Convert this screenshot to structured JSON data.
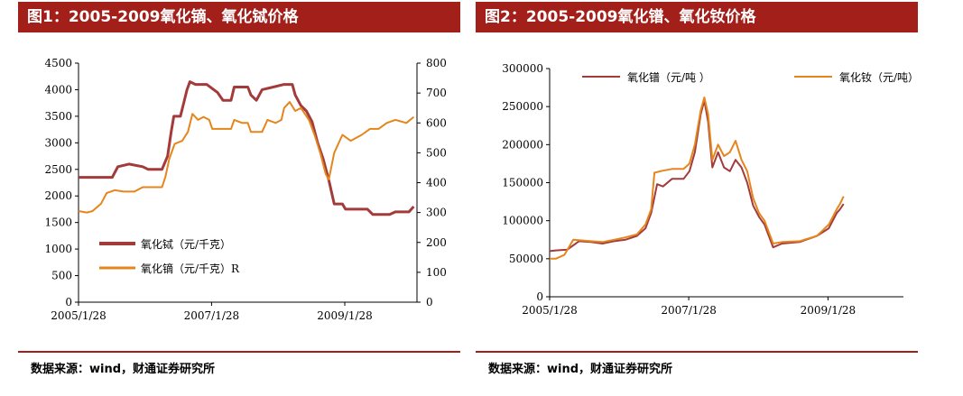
{
  "colors": {
    "title_bg": "#a31f1a",
    "series_dark": "#a33b3b",
    "series_orange": "#e5851d"
  },
  "panels": [
    {
      "title": "图1：2005-2009氧化镝、氧化铽价格",
      "source": "数据来源：wind，财通证券研究所"
    },
    {
      "title": "图2：2005-2009氧化镨、氧化钕价格",
      "source": "数据来源：wind，财通证券研究所"
    }
  ],
  "chart_data": [
    {
      "type": "line",
      "title": "",
      "x_ticks": [
        "2005/1/28",
        "2007/1/28",
        "2009/1/28"
      ],
      "x_range": [
        "2005-01-28",
        "2010-02-28"
      ],
      "y_left": {
        "min": 0,
        "max": 4500,
        "ticks": [
          0,
          500,
          1000,
          1500,
          2000,
          2500,
          3000,
          3500,
          4000,
          4500
        ]
      },
      "y_right": {
        "min": 0,
        "max": 800,
        "ticks": [
          0,
          100,
          200,
          300,
          400,
          500,
          600,
          700,
          800
        ]
      },
      "grid": false,
      "legend": "bottom-center",
      "series": [
        {
          "name": "氧化铽（元/千克）",
          "axis": "left",
          "color": "#a33b3b",
          "width": 3,
          "points": [
            [
              "2005-01-28",
              2350
            ],
            [
              "2005-08-01",
              2350
            ],
            [
              "2005-09-01",
              2550
            ],
            [
              "2005-11-01",
              2600
            ],
            [
              "2006-01-15",
              2550
            ],
            [
              "2006-02-15",
              2500
            ],
            [
              "2006-05-01",
              2500
            ],
            [
              "2006-06-01",
              2750
            ],
            [
              "2006-06-20",
              3200
            ],
            [
              "2006-07-05",
              3500
            ],
            [
              "2006-08-10",
              3500
            ],
            [
              "2006-09-01",
              3800
            ],
            [
              "2006-09-15",
              4000
            ],
            [
              "2006-10-01",
              4150
            ],
            [
              "2006-11-01",
              4100
            ],
            [
              "2007-01-01",
              4100
            ],
            [
              "2007-03-01",
              3950
            ],
            [
              "2007-04-01",
              3800
            ],
            [
              "2007-05-15",
              3800
            ],
            [
              "2007-06-01",
              4050
            ],
            [
              "2007-08-15",
              4050
            ],
            [
              "2007-09-01",
              3900
            ],
            [
              "2007-10-01",
              3800
            ],
            [
              "2007-11-01",
              4000
            ],
            [
              "2008-01-01",
              4050
            ],
            [
              "2008-03-01",
              4100
            ],
            [
              "2008-04-15",
              4100
            ],
            [
              "2008-05-01",
              3900
            ],
            [
              "2008-06-01",
              3700
            ],
            [
              "2008-07-01",
              3600
            ],
            [
              "2008-08-01",
              3400
            ],
            [
              "2008-09-01",
              3000
            ],
            [
              "2008-10-01",
              2700
            ],
            [
              "2008-11-01",
              2300
            ],
            [
              "2008-12-01",
              1850
            ],
            [
              "2009-01-15",
              1850
            ],
            [
              "2009-02-01",
              1750
            ],
            [
              "2009-06-01",
              1750
            ],
            [
              "2009-07-01",
              1650
            ],
            [
              "2009-10-01",
              1650
            ],
            [
              "2009-11-01",
              1700
            ],
            [
              "2010-01-15",
              1700
            ],
            [
              "2010-02-10",
              1800
            ]
          ]
        },
        {
          "name": "氧化镝（元/千克）R",
          "axis": "right",
          "color": "#e5851d",
          "width": 2,
          "points": [
            [
              "2005-01-28",
              305
            ],
            [
              "2005-03-15",
              300
            ],
            [
              "2005-04-15",
              305
            ],
            [
              "2005-06-01",
              330
            ],
            [
              "2005-07-01",
              365
            ],
            [
              "2005-08-15",
              375
            ],
            [
              "2005-10-01",
              370
            ],
            [
              "2005-12-01",
              370
            ],
            [
              "2006-01-15",
              385
            ],
            [
              "2006-03-01",
              385
            ],
            [
              "2006-05-01",
              385
            ],
            [
              "2006-05-20",
              420
            ],
            [
              "2006-06-10",
              480
            ],
            [
              "2006-07-10",
              530
            ],
            [
              "2006-08-20",
              540
            ],
            [
              "2006-09-20",
              570
            ],
            [
              "2006-10-15",
              630
            ],
            [
              "2006-11-15",
              610
            ],
            [
              "2006-12-15",
              620
            ],
            [
              "2007-01-15",
              610
            ],
            [
              "2007-02-01",
              580
            ],
            [
              "2007-05-15",
              580
            ],
            [
              "2007-06-01",
              610
            ],
            [
              "2007-07-15",
              600
            ],
            [
              "2007-08-15",
              600
            ],
            [
              "2007-09-01",
              570
            ],
            [
              "2007-11-01",
              570
            ],
            [
              "2007-12-01",
              610
            ],
            [
              "2008-01-15",
              600
            ],
            [
              "2008-02-15",
              610
            ],
            [
              "2008-03-01",
              650
            ],
            [
              "2008-04-01",
              670
            ],
            [
              "2008-05-01",
              640
            ],
            [
              "2008-06-01",
              650
            ],
            [
              "2008-07-15",
              610
            ],
            [
              "2008-08-15",
              560
            ],
            [
              "2008-09-15",
              500
            ],
            [
              "2008-10-15",
              430
            ],
            [
              "2008-11-01",
              410
            ],
            [
              "2008-12-01",
              500
            ],
            [
              "2009-01-15",
              560
            ],
            [
              "2009-03-01",
              540
            ],
            [
              "2009-05-01",
              560
            ],
            [
              "2009-06-15",
              580
            ],
            [
              "2009-08-01",
              580
            ],
            [
              "2009-09-15",
              600
            ],
            [
              "2009-11-01",
              610
            ],
            [
              "2010-01-01",
              600
            ],
            [
              "2010-02-10",
              620
            ]
          ]
        }
      ]
    },
    {
      "type": "line",
      "title": "",
      "x_ticks": [
        "2005/1/28",
        "2007/1/28",
        "2009/1/28"
      ],
      "x_range": [
        "2005-01-28",
        "2010-02-28"
      ],
      "y_left": {
        "min": 0,
        "max": 300000,
        "ticks": [
          0,
          50000,
          100000,
          150000,
          200000,
          250000,
          300000
        ]
      },
      "grid": false,
      "legend": "top-center",
      "series": [
        {
          "name": "氧化镨（元/吨 ）",
          "axis": "left",
          "color": "#a33b3b",
          "width": 2,
          "points": [
            [
              "2005-01-28",
              60000
            ],
            [
              "2005-03-01",
              61000
            ],
            [
              "2005-05-01",
              62000
            ],
            [
              "2005-07-01",
              73000
            ],
            [
              "2005-09-01",
              72000
            ],
            [
              "2005-11-01",
              70000
            ],
            [
              "2006-01-01",
              73000
            ],
            [
              "2006-03-01",
              75000
            ],
            [
              "2006-05-01",
              80000
            ],
            [
              "2006-06-15",
              90000
            ],
            [
              "2006-07-15",
              110000
            ],
            [
              "2006-08-15",
              148000
            ],
            [
              "2006-09-15",
              145000
            ],
            [
              "2006-11-01",
              155000
            ],
            [
              "2007-01-01",
              155000
            ],
            [
              "2007-02-01",
              165000
            ],
            [
              "2007-03-01",
              190000
            ],
            [
              "2007-04-01",
              240000
            ],
            [
              "2007-04-20",
              258000
            ],
            [
              "2007-05-10",
              230000
            ],
            [
              "2007-06-01",
              170000
            ],
            [
              "2007-07-01",
              190000
            ],
            [
              "2007-08-01",
              170000
            ],
            [
              "2007-09-01",
              165000
            ],
            [
              "2007-10-01",
              180000
            ],
            [
              "2007-11-01",
              170000
            ],
            [
              "2007-12-01",
              150000
            ],
            [
              "2008-01-01",
              120000
            ],
            [
              "2008-02-01",
              105000
            ],
            [
              "2008-03-01",
              95000
            ],
            [
              "2008-04-15",
              65000
            ],
            [
              "2008-06-01",
              70000
            ],
            [
              "2008-09-01",
              72000
            ],
            [
              "2008-12-01",
              80000
            ],
            [
              "2009-02-01",
              90000
            ],
            [
              "2009-03-15",
              110000
            ],
            [
              "2009-04-01",
              115000
            ],
            [
              "2009-04-20",
              122000
            ]
          ]
        },
        {
          "name": "氧化钕（元/吨）",
          "axis": "left",
          "color": "#e5851d",
          "width": 2,
          "points": [
            [
              "2005-01-28",
              50000
            ],
            [
              "2005-03-01",
              50000
            ],
            [
              "2005-04-15",
              55000
            ],
            [
              "2005-06-01",
              75000
            ],
            [
              "2005-09-01",
              73000
            ],
            [
              "2005-11-01",
              72000
            ],
            [
              "2006-01-01",
              75000
            ],
            [
              "2006-03-01",
              78000
            ],
            [
              "2006-05-01",
              82000
            ],
            [
              "2006-06-15",
              95000
            ],
            [
              "2006-07-15",
              115000
            ],
            [
              "2006-08-01",
              163000
            ],
            [
              "2006-09-01",
              165000
            ],
            [
              "2006-11-01",
              168000
            ],
            [
              "2007-01-01",
              168000
            ],
            [
              "2007-02-01",
              175000
            ],
            [
              "2007-03-01",
              200000
            ],
            [
              "2007-04-01",
              245000
            ],
            [
              "2007-04-20",
              262000
            ],
            [
              "2007-05-10",
              240000
            ],
            [
              "2007-06-01",
              180000
            ],
            [
              "2007-07-01",
              200000
            ],
            [
              "2007-08-01",
              185000
            ],
            [
              "2007-09-01",
              190000
            ],
            [
              "2007-10-01",
              205000
            ],
            [
              "2007-11-01",
              180000
            ],
            [
              "2007-12-01",
              165000
            ],
            [
              "2008-01-01",
              130000
            ],
            [
              "2008-02-01",
              110000
            ],
            [
              "2008-03-01",
              100000
            ],
            [
              "2008-04-15",
              70000
            ],
            [
              "2008-06-01",
              72000
            ],
            [
              "2008-09-01",
              73000
            ],
            [
              "2008-12-01",
              80000
            ],
            [
              "2009-02-01",
              95000
            ],
            [
              "2009-03-15",
              115000
            ],
            [
              "2009-04-01",
              122000
            ],
            [
              "2009-04-20",
              132000
            ]
          ]
        }
      ]
    }
  ]
}
